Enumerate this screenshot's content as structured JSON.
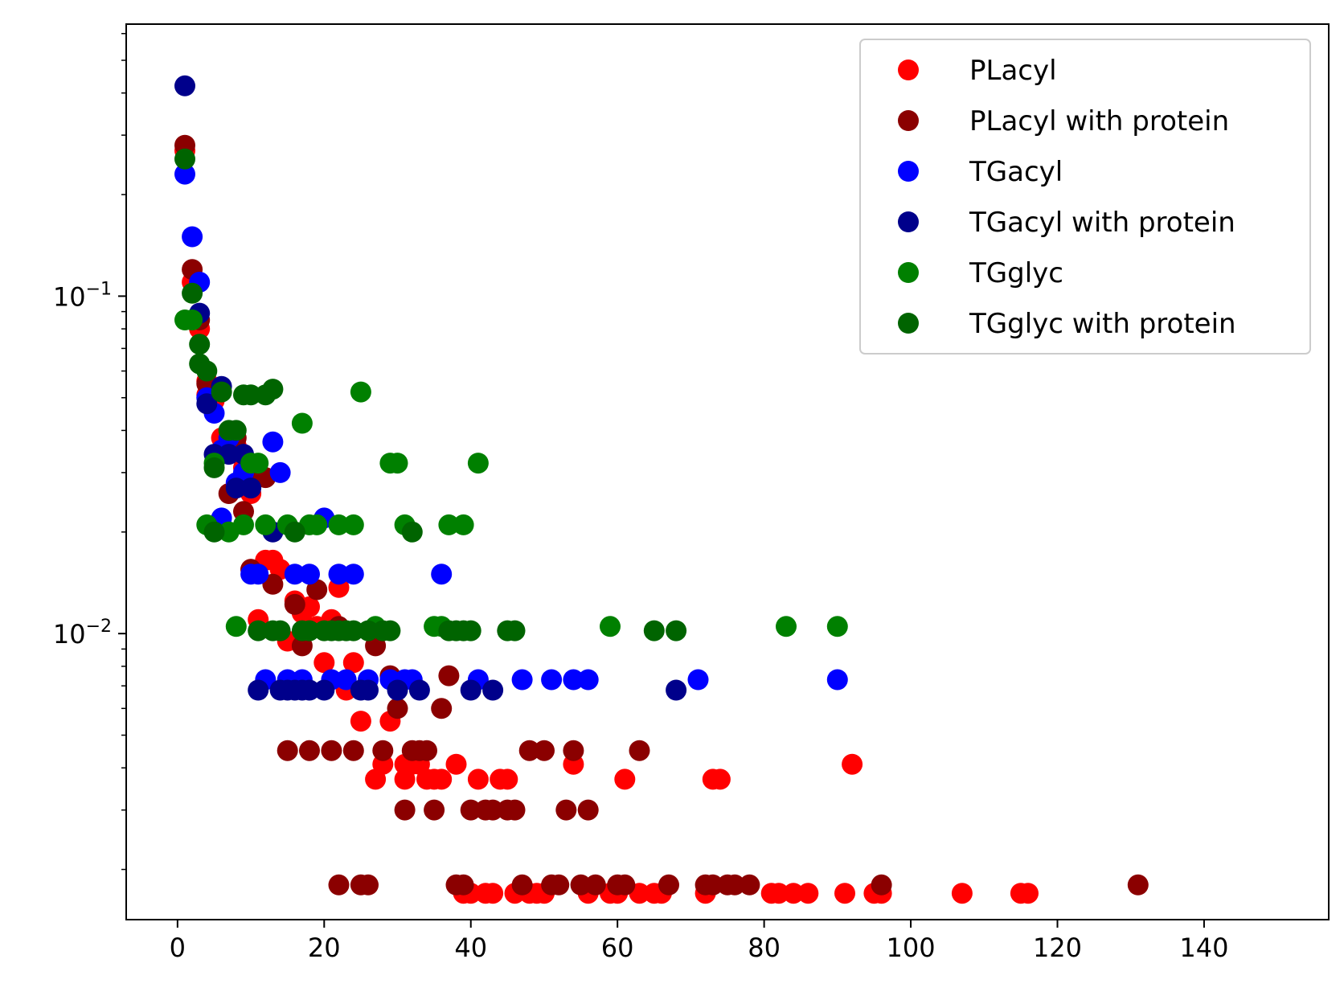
{
  "chart_data": {
    "type": "scatter",
    "title": "",
    "xlabel": "",
    "ylabel": "",
    "x_scale": "linear",
    "y_scale": "log",
    "xlim": [
      -7,
      157
    ],
    "ylim": [
      0.00142,
      0.64
    ],
    "x_ticks": [
      0,
      20,
      40,
      60,
      80,
      100,
      120,
      140
    ],
    "x_tick_labels": [
      "0",
      "20",
      "40",
      "60",
      "80",
      "100",
      "120",
      "140"
    ],
    "y_ticks": [
      0.01,
      0.1
    ],
    "y_tick_labels": [
      {
        "base": "10",
        "exp": "−2"
      },
      {
        "base": "10",
        "exp": "−1"
      }
    ],
    "grid": false,
    "legend_position": "upper right",
    "series": [
      {
        "name": "PLacyl",
        "color": "#ff0000",
        "points": [
          [
            1,
            0.27
          ],
          [
            2,
            0.11
          ],
          [
            3,
            0.08
          ],
          [
            4,
            0.051
          ],
          [
            4,
            0.056
          ],
          [
            5,
            0.049
          ],
          [
            6,
            0.038
          ],
          [
            7,
            0.038
          ],
          [
            8,
            0.036
          ],
          [
            9,
            0.031
          ],
          [
            10,
            0.026
          ],
          [
            10,
            0.0155
          ],
          [
            11,
            0.011
          ],
          [
            12,
            0.0165
          ],
          [
            13,
            0.0165
          ],
          [
            14,
            0.0155
          ],
          [
            15,
            0.0095
          ],
          [
            16,
            0.0125
          ],
          [
            17,
            0.0115
          ],
          [
            18,
            0.012
          ],
          [
            19,
            0.0105
          ],
          [
            20,
            0.0082
          ],
          [
            21,
            0.011
          ],
          [
            22,
            0.0137
          ],
          [
            23,
            0.0068
          ],
          [
            24,
            0.0082
          ],
          [
            25,
            0.0055
          ],
          [
            27,
            0.0037
          ],
          [
            28,
            0.0041
          ],
          [
            29,
            0.0055
          ],
          [
            31,
            0.0037
          ],
          [
            31,
            0.0041
          ],
          [
            32,
            0.0041
          ],
          [
            33,
            0.0041
          ],
          [
            34,
            0.0037
          ],
          [
            35,
            0.0037
          ],
          [
            36,
            0.0037
          ],
          [
            38,
            0.0041
          ],
          [
            39,
            0.0017
          ],
          [
            40,
            0.0017
          ],
          [
            41,
            0.0037
          ],
          [
            42,
            0.0017
          ],
          [
            43,
            0.0017
          ],
          [
            44,
            0.0037
          ],
          [
            45,
            0.0037
          ],
          [
            46,
            0.0017
          ],
          [
            48,
            0.0017
          ],
          [
            49,
            0.0017
          ],
          [
            50,
            0.0017
          ],
          [
            54,
            0.0041
          ],
          [
            56,
            0.0017
          ],
          [
            59,
            0.0017
          ],
          [
            60,
            0.0017
          ],
          [
            61,
            0.0037
          ],
          [
            63,
            0.0017
          ],
          [
            65,
            0.0017
          ],
          [
            66,
            0.0017
          ],
          [
            72,
            0.0017
          ],
          [
            73,
            0.0037
          ],
          [
            74,
            0.0037
          ],
          [
            81,
            0.0017
          ],
          [
            82,
            0.0017
          ],
          [
            84,
            0.0017
          ],
          [
            86,
            0.0017
          ],
          [
            91,
            0.0017
          ],
          [
            92,
            0.0041
          ],
          [
            95,
            0.0017
          ],
          [
            96,
            0.0017
          ],
          [
            107,
            0.0017
          ],
          [
            115,
            0.0017
          ],
          [
            116,
            0.0017
          ]
        ]
      },
      {
        "name": "PLacyl with protein",
        "color": "#8b0000",
        "points": [
          [
            1,
            0.28
          ],
          [
            2,
            0.12
          ],
          [
            3,
            0.085
          ],
          [
            4,
            0.055
          ],
          [
            7,
            0.026
          ],
          [
            8,
            0.038
          ],
          [
            9,
            0.023
          ],
          [
            10,
            0.029
          ],
          [
            10,
            0.0155
          ],
          [
            12,
            0.029
          ],
          [
            13,
            0.014
          ],
          [
            16,
            0.0122
          ],
          [
            17,
            0.0092
          ],
          [
            19,
            0.0135
          ],
          [
            22,
            0.0105
          ],
          [
            15,
            0.0045
          ],
          [
            18,
            0.0045
          ],
          [
            21,
            0.0045
          ],
          [
            24,
            0.0045
          ],
          [
            22,
            0.0018
          ],
          [
            25,
            0.0018
          ],
          [
            26,
            0.0018
          ],
          [
            27,
            0.0092
          ],
          [
            28,
            0.0045
          ],
          [
            29,
            0.0075
          ],
          [
            30,
            0.006
          ],
          [
            31,
            0.003
          ],
          [
            32,
            0.0045
          ],
          [
            33,
            0.0045
          ],
          [
            34,
            0.0045
          ],
          [
            35,
            0.003
          ],
          [
            36,
            0.006
          ],
          [
            37,
            0.0075
          ],
          [
            38,
            0.0018
          ],
          [
            39,
            0.0018
          ],
          [
            40,
            0.003
          ],
          [
            42,
            0.003
          ],
          [
            43,
            0.003
          ],
          [
            45,
            0.003
          ],
          [
            46,
            0.003
          ],
          [
            47,
            0.0018
          ],
          [
            48,
            0.0045
          ],
          [
            50,
            0.0045
          ],
          [
            51,
            0.0018
          ],
          [
            52,
            0.0018
          ],
          [
            53,
            0.003
          ],
          [
            54,
            0.0045
          ],
          [
            55,
            0.0018
          ],
          [
            56,
            0.003
          ],
          [
            57,
            0.0018
          ],
          [
            60,
            0.0018
          ],
          [
            61,
            0.0018
          ],
          [
            63,
            0.0045
          ],
          [
            67,
            0.0018
          ],
          [
            72,
            0.0018
          ],
          [
            73,
            0.0018
          ],
          [
            75,
            0.0018
          ],
          [
            76,
            0.0018
          ],
          [
            78,
            0.0018
          ],
          [
            96,
            0.0018
          ],
          [
            131,
            0.0018
          ]
        ]
      },
      {
        "name": "TGacyl",
        "color": "#0000ff",
        "points": [
          [
            1,
            0.23
          ],
          [
            2,
            0.15
          ],
          [
            3,
            0.11
          ],
          [
            4,
            0.05
          ],
          [
            5,
            0.045
          ],
          [
            6,
            0.022
          ],
          [
            6,
            0.035
          ],
          [
            7,
            0.038
          ],
          [
            8,
            0.028
          ],
          [
            9,
            0.03
          ],
          [
            10,
            0.015
          ],
          [
            11,
            0.015
          ],
          [
            12,
            0.0073
          ],
          [
            13,
            0.037
          ],
          [
            14,
            0.03
          ],
          [
            15,
            0.0073
          ],
          [
            16,
            0.015
          ],
          [
            17,
            0.0073
          ],
          [
            18,
            0.015
          ],
          [
            20,
            0.022
          ],
          [
            21,
            0.0073
          ],
          [
            22,
            0.015
          ],
          [
            23,
            0.0073
          ],
          [
            24,
            0.015
          ],
          [
            26,
            0.0073
          ],
          [
            29,
            0.0073
          ],
          [
            31,
            0.0073
          ],
          [
            32,
            0.0073
          ],
          [
            36,
            0.015
          ],
          [
            41,
            0.0073
          ],
          [
            47,
            0.0073
          ],
          [
            51,
            0.0073
          ],
          [
            54,
            0.0073
          ],
          [
            56,
            0.0073
          ],
          [
            71,
            0.0073
          ],
          [
            90,
            0.0073
          ]
        ]
      },
      {
        "name": "TGacyl with protein",
        "color": "#00008b",
        "points": [
          [
            1,
            0.42
          ],
          [
            3,
            0.089
          ],
          [
            4,
            0.048
          ],
          [
            5,
            0.034
          ],
          [
            6,
            0.054
          ],
          [
            7,
            0.034
          ],
          [
            8,
            0.027
          ],
          [
            9,
            0.034
          ],
          [
            10,
            0.027
          ],
          [
            11,
            0.0068
          ],
          [
            13,
            0.02
          ],
          [
            14,
            0.0068
          ],
          [
            15,
            0.0068
          ],
          [
            16,
            0.0068
          ],
          [
            17,
            0.0068
          ],
          [
            18,
            0.0068
          ],
          [
            20,
            0.0068
          ],
          [
            25,
            0.0068
          ],
          [
            26,
            0.0068
          ],
          [
            30,
            0.0068
          ],
          [
            33,
            0.0068
          ],
          [
            40,
            0.0068
          ],
          [
            43,
            0.0068
          ],
          [
            68,
            0.0068
          ]
        ]
      },
      {
        "name": "TGglyc",
        "color": "#008000",
        "points": [
          [
            1,
            0.085
          ],
          [
            2,
            0.085
          ],
          [
            4,
            0.021
          ],
          [
            5,
            0.032
          ],
          [
            7,
            0.02
          ],
          [
            8,
            0.0105
          ],
          [
            9,
            0.021
          ],
          [
            10,
            0.032
          ],
          [
            11,
            0.032
          ],
          [
            12,
            0.021
          ],
          [
            15,
            0.021
          ],
          [
            17,
            0.042
          ],
          [
            18,
            0.021
          ],
          [
            19,
            0.021
          ],
          [
            22,
            0.021
          ],
          [
            24,
            0.021
          ],
          [
            25,
            0.052
          ],
          [
            27,
            0.0105
          ],
          [
            29,
            0.032
          ],
          [
            30,
            0.032
          ],
          [
            31,
            0.021
          ],
          [
            35,
            0.0105
          ],
          [
            36,
            0.0105
          ],
          [
            37,
            0.021
          ],
          [
            39,
            0.021
          ],
          [
            41,
            0.032
          ],
          [
            59,
            0.0105
          ],
          [
            83,
            0.0105
          ],
          [
            90,
            0.0105
          ]
        ]
      },
      {
        "name": "TGglyc with protein",
        "color": "#006400",
        "points": [
          [
            1,
            0.255
          ],
          [
            2,
            0.102
          ],
          [
            3,
            0.072
          ],
          [
            3,
            0.063
          ],
          [
            4,
            0.06
          ],
          [
            5,
            0.031
          ],
          [
            5,
            0.02
          ],
          [
            6,
            0.052
          ],
          [
            7,
            0.04
          ],
          [
            8,
            0.04
          ],
          [
            9,
            0.051
          ],
          [
            10,
            0.051
          ],
          [
            11,
            0.0102
          ],
          [
            12,
            0.051
          ],
          [
            13,
            0.053
          ],
          [
            13,
            0.0102
          ],
          [
            14,
            0.0102
          ],
          [
            16,
            0.02
          ],
          [
            17,
            0.0102
          ],
          [
            18,
            0.0102
          ],
          [
            20,
            0.0102
          ],
          [
            21,
            0.0102
          ],
          [
            22,
            0.0102
          ],
          [
            23,
            0.0102
          ],
          [
            24,
            0.0102
          ],
          [
            26,
            0.0102
          ],
          [
            28,
            0.0102
          ],
          [
            29,
            0.0102
          ],
          [
            32,
            0.02
          ],
          [
            37,
            0.0102
          ],
          [
            38,
            0.0102
          ],
          [
            39,
            0.0102
          ],
          [
            40,
            0.0102
          ],
          [
            45,
            0.0102
          ],
          [
            46,
            0.0102
          ],
          [
            65,
            0.0102
          ],
          [
            68,
            0.0102
          ]
        ]
      }
    ]
  }
}
